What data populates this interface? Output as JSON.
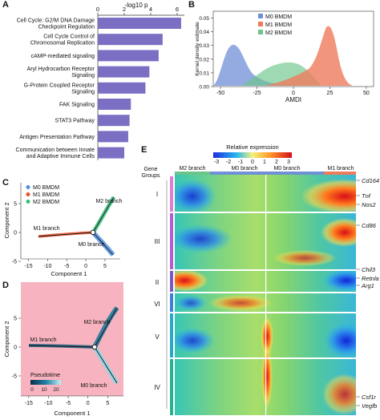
{
  "panels": {
    "A": {
      "letter": "A",
      "axis_title": "-log10 p",
      "ticks": [
        0,
        2,
        4,
        6
      ],
      "bar_color": "#7b6fc4",
      "pathways": [
        {
          "label": [
            "Cell Cycle: G2/M DNA Damage",
            "Checkpoint Regulation"
          ],
          "value": 6.3
        },
        {
          "label": [
            "Cell Cycle Control of",
            "Chromosomal Replication"
          ],
          "value": 4.9
        },
        {
          "label": [
            "cAMP-mediated signaling"
          ],
          "value": 4.6
        },
        {
          "label": [
            "Aryl Hydrocarbon Receptor",
            "Signaling"
          ],
          "value": 3.9
        },
        {
          "label": [
            "G-Protein Coupled Receptor",
            "Signaling"
          ],
          "value": 3.6
        },
        {
          "label": [
            "FAK Signaling"
          ],
          "value": 2.5
        },
        {
          "label": [
            "STAT3 Pathway"
          ],
          "value": 2.4
        },
        {
          "label": [
            "Antigen Presentation Pathway"
          ],
          "value": 2.3
        },
        {
          "label": [
            "Communication between Innate",
            "and Adaptive Immune Cells"
          ],
          "value": 2.0
        }
      ]
    },
    "B": {
      "letter": "B",
      "ylabel": "Kernel density estimate",
      "xlabel": "AMDI",
      "xticks": [
        -50,
        -25,
        0,
        25,
        50
      ],
      "yticks": [
        0.0,
        0.01,
        0.02,
        0.03,
        0.04,
        0.05
      ],
      "legend": [
        {
          "name": "M0 BMDM",
          "color": "#6f8fd6"
        },
        {
          "name": "M1 BMDM",
          "color": "#ef7a5c"
        },
        {
          "name": "M2 BMDM",
          "color": "#6cc48a"
        }
      ]
    },
    "C": {
      "letter": "C",
      "xlabel": "Component 1",
      "ylabel": "Component 2",
      "xticks": [
        -15,
        -10,
        -5,
        0,
        5
      ],
      "yticks": [
        -5,
        0,
        5
      ],
      "legend": [
        {
          "name": "M0 BMDM",
          "color": "#4f8fe0"
        },
        {
          "name": "M1 BMDM",
          "color": "#e8522c"
        },
        {
          "name": "M2 BMDM",
          "color": "#34c07a"
        }
      ],
      "branches": {
        "m2": "M2 branch",
        "m1": "M1 branch",
        "m0": "M0 branch"
      }
    },
    "D": {
      "letter": "D",
      "xlabel": "Component 1",
      "ylabel": "Component 2",
      "xticks": [
        -15,
        -10,
        -5,
        0,
        5
      ],
      "yticks": [
        -5,
        0,
        5
      ],
      "background": "#f7b3bf",
      "legend_title": "Pseudotime",
      "legend_ticks": [
        "0",
        "10",
        "20"
      ],
      "branches": {
        "m2": "M2 branch",
        "m1": "M1 branch",
        "m0": "M0 branch"
      }
    },
    "E": {
      "letter": "E",
      "colorbar_title": "Relative expression",
      "colorbar_ticks": [
        "-3",
        "-2",
        "-1",
        "0",
        "1",
        "2",
        "3"
      ],
      "gene_groups_title": [
        "Gene",
        "Groups"
      ],
      "branch_labels": [
        "M2 branch",
        "M0 branch",
        "M0 branch",
        "M1 branch"
      ],
      "groups": [
        "I",
        "III",
        "II",
        "VI",
        "V",
        "IV"
      ],
      "genes": [
        "Cd164",
        "Tnf",
        "Nos2",
        "Cd86",
        "Chil3",
        "Retnla",
        "Arg1",
        "Csf1r",
        "Vegfb"
      ]
    }
  }
}
